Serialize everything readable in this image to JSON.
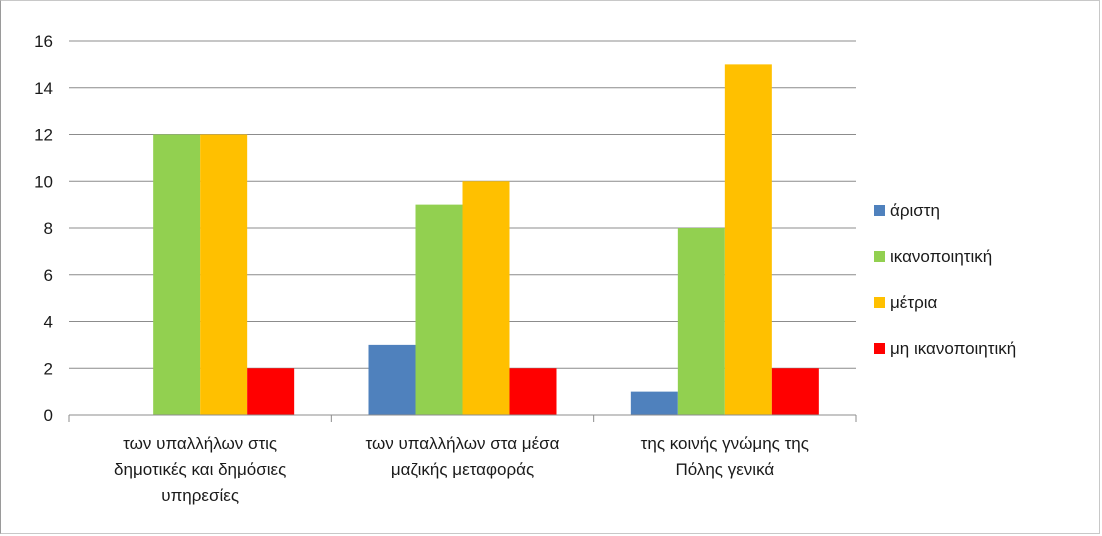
{
  "chart_data": {
    "type": "bar",
    "categories": [
      [
        "των υπαλλήλων  στις",
        "δημοτικές  και  δημόσιες",
        "υπηρεσίες"
      ],
      [
        "των υπαλλήλων  στα  μέσα",
        "μαζικής  μεταφοράς"
      ],
      [
        "της κοινής γνώμης της",
        "Πόλης γενικά"
      ]
    ],
    "series": [
      {
        "name": "άριστη",
        "color": "#4f81bd",
        "values": [
          0,
          3,
          1
        ]
      },
      {
        "name": "ικανοποιητική",
        "color": "#92d050",
        "values": [
          12,
          9,
          8
        ]
      },
      {
        "name": "μέτρια",
        "color": "#ffc000",
        "values": [
          12,
          10,
          15
        ]
      },
      {
        "name": "μη ικανοποιητική",
        "color": "#ff0000",
        "values": [
          2,
          2,
          2
        ]
      }
    ],
    "yticks": [
      "0",
      "2",
      "4",
      "6",
      "8",
      "10",
      "12",
      "14",
      "16"
    ],
    "ylim": [
      0,
      16
    ],
    "grid": true,
    "legend_position": "right"
  }
}
